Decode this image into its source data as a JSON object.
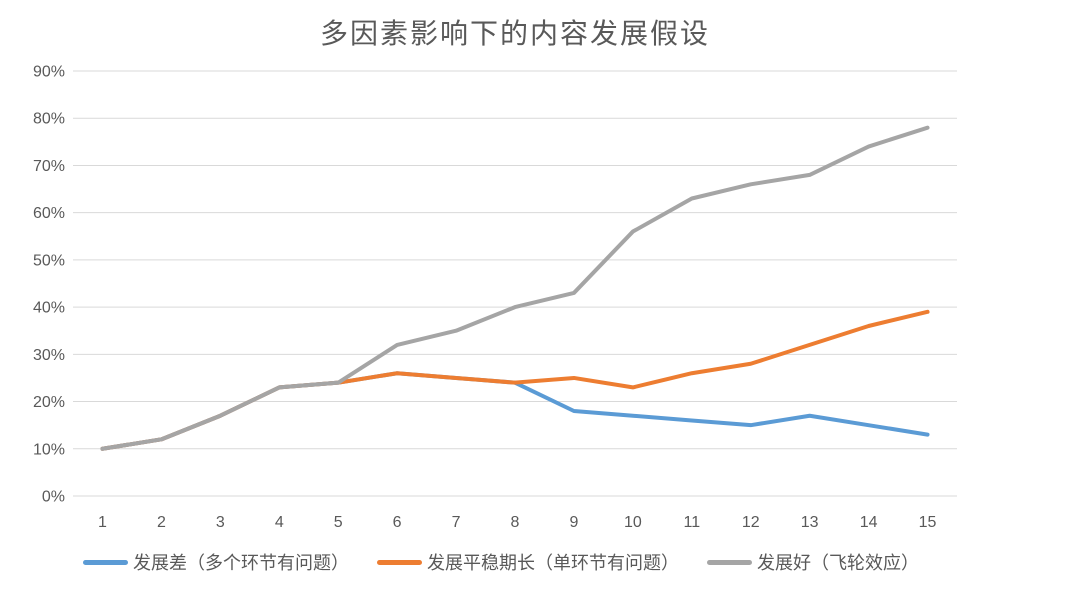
{
  "colors": {
    "background": "#FFFFFF",
    "grid": "#D9D9D9",
    "tick_text": "#595959",
    "title_text": "#595959",
    "series_blue": "#5B9BD5",
    "series_orange": "#ED7D31",
    "series_gray": "#A5A5A5"
  },
  "chart_data": {
    "type": "line",
    "title": "多因素影响下的内容发展假设",
    "x_labels": [
      "1",
      "2",
      "3",
      "4",
      "5",
      "6",
      "7",
      "8",
      "9",
      "10",
      "11",
      "12",
      "13",
      "14",
      "15"
    ],
    "y_tick_labels": [
      "0%",
      "10%",
      "20%",
      "30%",
      "40%",
      "50%",
      "60%",
      "70%",
      "80%",
      "90%"
    ],
    "ylim": [
      0,
      90
    ],
    "grid": true,
    "legend_position": "bottom",
    "xlabel": "",
    "ylabel": "",
    "series": [
      {
        "name": "发展差（多个环节有问题）",
        "color": "#5B9BD5",
        "values": [
          10,
          12,
          17,
          23,
          24,
          26,
          25,
          24,
          18,
          17,
          16,
          15,
          17,
          15,
          13
        ]
      },
      {
        "name": "发展平稳期长（单环节有问题）",
        "color": "#ED7D31",
        "values": [
          10,
          12,
          17,
          23,
          24,
          26,
          25,
          24,
          25,
          23,
          26,
          28,
          32,
          36,
          39
        ]
      },
      {
        "name": "发展好（飞轮效应）",
        "color": "#A5A5A5",
        "values": [
          10,
          12,
          17,
          23,
          24,
          32,
          35,
          40,
          43,
          56,
          63,
          66,
          68,
          74,
          78
        ]
      }
    ]
  }
}
